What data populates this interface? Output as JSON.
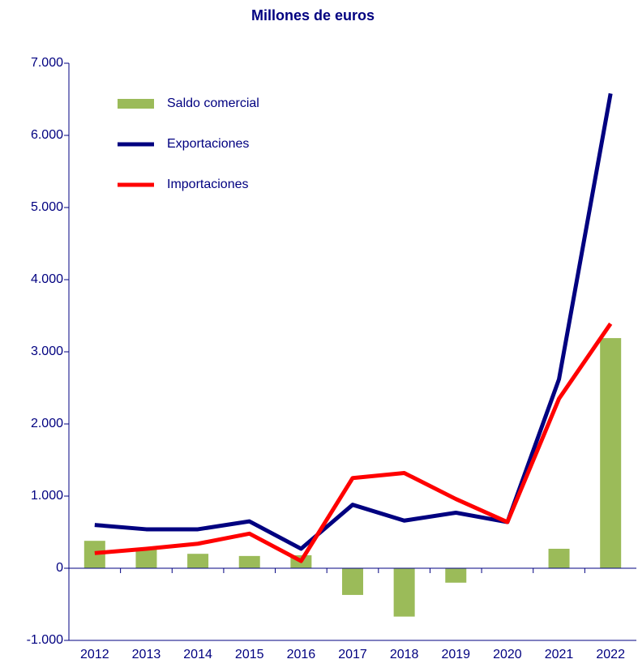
{
  "chart_data": {
    "type": "bar_line",
    "title": "Millones de euros",
    "categories": [
      "2012",
      "2013",
      "2014",
      "2015",
      "2016",
      "2017",
      "2018",
      "2019",
      "2020",
      "2021",
      "2022"
    ],
    "series": [
      {
        "name": "Saldo comercial",
        "type": "bar",
        "color": "#9bbb59",
        "values": [
          380,
          270,
          200,
          170,
          180,
          -370,
          -670,
          -200,
          0,
          270,
          3190
        ]
      },
      {
        "name": "Exportaciones",
        "type": "line",
        "color": "#000080",
        "values": [
          600,
          540,
          540,
          650,
          270,
          880,
          660,
          770,
          640,
          2620,
          6580
        ]
      },
      {
        "name": "Importaciones",
        "type": "line",
        "color": "#ff0000",
        "values": [
          210,
          270,
          340,
          480,
          100,
          1250,
          1320,
          960,
          640,
          2350,
          3390
        ]
      }
    ],
    "ylim": [
      -1000,
      7000
    ],
    "yticks": [
      {
        "value": -1000,
        "label": "-1.000"
      },
      0,
      {
        "value": 1000,
        "label": "1.000"
      },
      {
        "value": 2000,
        "label": "2.000"
      },
      {
        "value": 3000,
        "label": "3.000"
      },
      {
        "value": 4000,
        "label": "4.000"
      },
      {
        "value": 5000,
        "label": "5.000"
      },
      {
        "value": 6000,
        "label": "6.000"
      },
      {
        "value": 7000,
        "label": "7.000"
      }
    ],
    "grid": false,
    "legend": "upper left"
  }
}
